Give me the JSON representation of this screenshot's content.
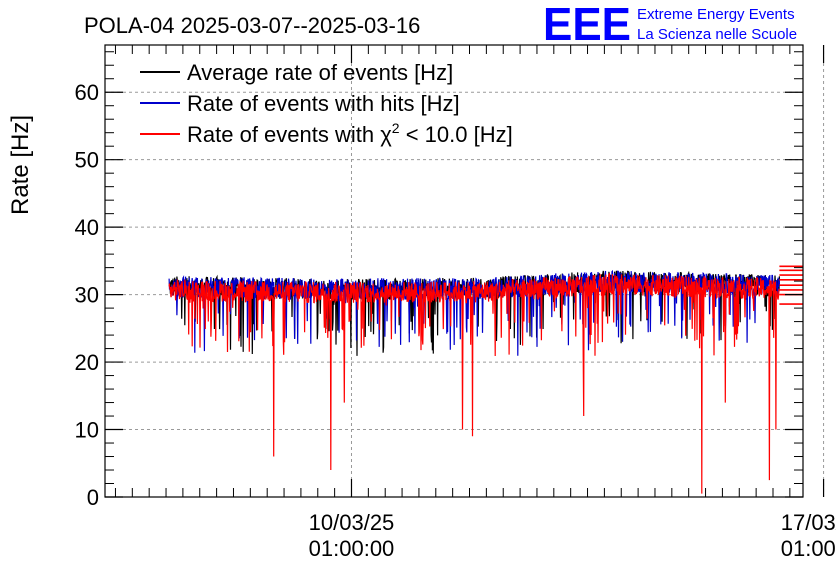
{
  "chart_data": {
    "type": "line",
    "title": "POLA-04 2025-03-07--2025-03-16",
    "ylabel": "Rate [Hz]",
    "xlabel": "",
    "ylim": [
      0,
      67
    ],
    "xlim_days": [
      0,
      10.35
    ],
    "yticks": [
      0,
      10,
      20,
      30,
      40,
      50,
      60
    ],
    "xticks": [
      {
        "day": 3.655,
        "date": "10/03/25",
        "time": "01:00:00"
      },
      {
        "day": 10.655,
        "date": "17/03/25",
        "time": "01:00:00"
      }
    ],
    "grid": true,
    "legend_position": "top-left",
    "series": [
      {
        "name": "Average rate of events [Hz]",
        "color": "#000000",
        "base": 32.0
      },
      {
        "name": "Rate of events with hits [Hz]",
        "color": "#0000cc",
        "base": 32.0
      },
      {
        "name": "Rate of events with χ² < 10.0 [Hz]",
        "color": "#ff0000",
        "base": 31.5
      }
    ],
    "base_trend": [
      [
        0.9,
        31.2
      ],
      [
        3.0,
        30.8
      ],
      [
        5.5,
        30.9
      ],
      [
        7.5,
        32.0
      ],
      [
        9.0,
        31.6
      ],
      [
        10.0,
        31.3
      ]
    ],
    "data_range_days": [
      0.95,
      10.0
    ],
    "dips": [
      {
        "day": 2.5,
        "value": 6
      },
      {
        "day": 3.35,
        "value": 4
      },
      {
        "day": 3.55,
        "value": 14
      },
      {
        "day": 5.3,
        "value": 10
      },
      {
        "day": 5.45,
        "value": 9
      },
      {
        "day": 7.1,
        "value": 12
      },
      {
        "day": 8.85,
        "value": 0.5
      },
      {
        "day": 9.2,
        "value": 14
      },
      {
        "day": 9.85,
        "value": 2.5
      },
      {
        "day": 9.95,
        "value": 10
      }
    ],
    "tail_levels": [
      34.2,
      33.6,
      32.9,
      32.2,
      31.4,
      30.7,
      30.0,
      28.6
    ]
  },
  "header": {
    "logo_text": "EEE",
    "logo_line1": "Extreme Energy Events",
    "logo_line2": "La Scienza nelle Scuole",
    "logo_color": "#0000ff"
  },
  "legend_entries": [
    {
      "label": "Average rate of events [Hz]",
      "color": "#000000"
    },
    {
      "label": "Rate of events with hits [Hz]",
      "color": "#0000cc"
    },
    {
      "label_prefix": "Rate of events with ",
      "label_chi": "χ",
      "label_sup": "2",
      "label_suffix": " < 10.0 [Hz]",
      "color": "#ff0000"
    }
  ]
}
